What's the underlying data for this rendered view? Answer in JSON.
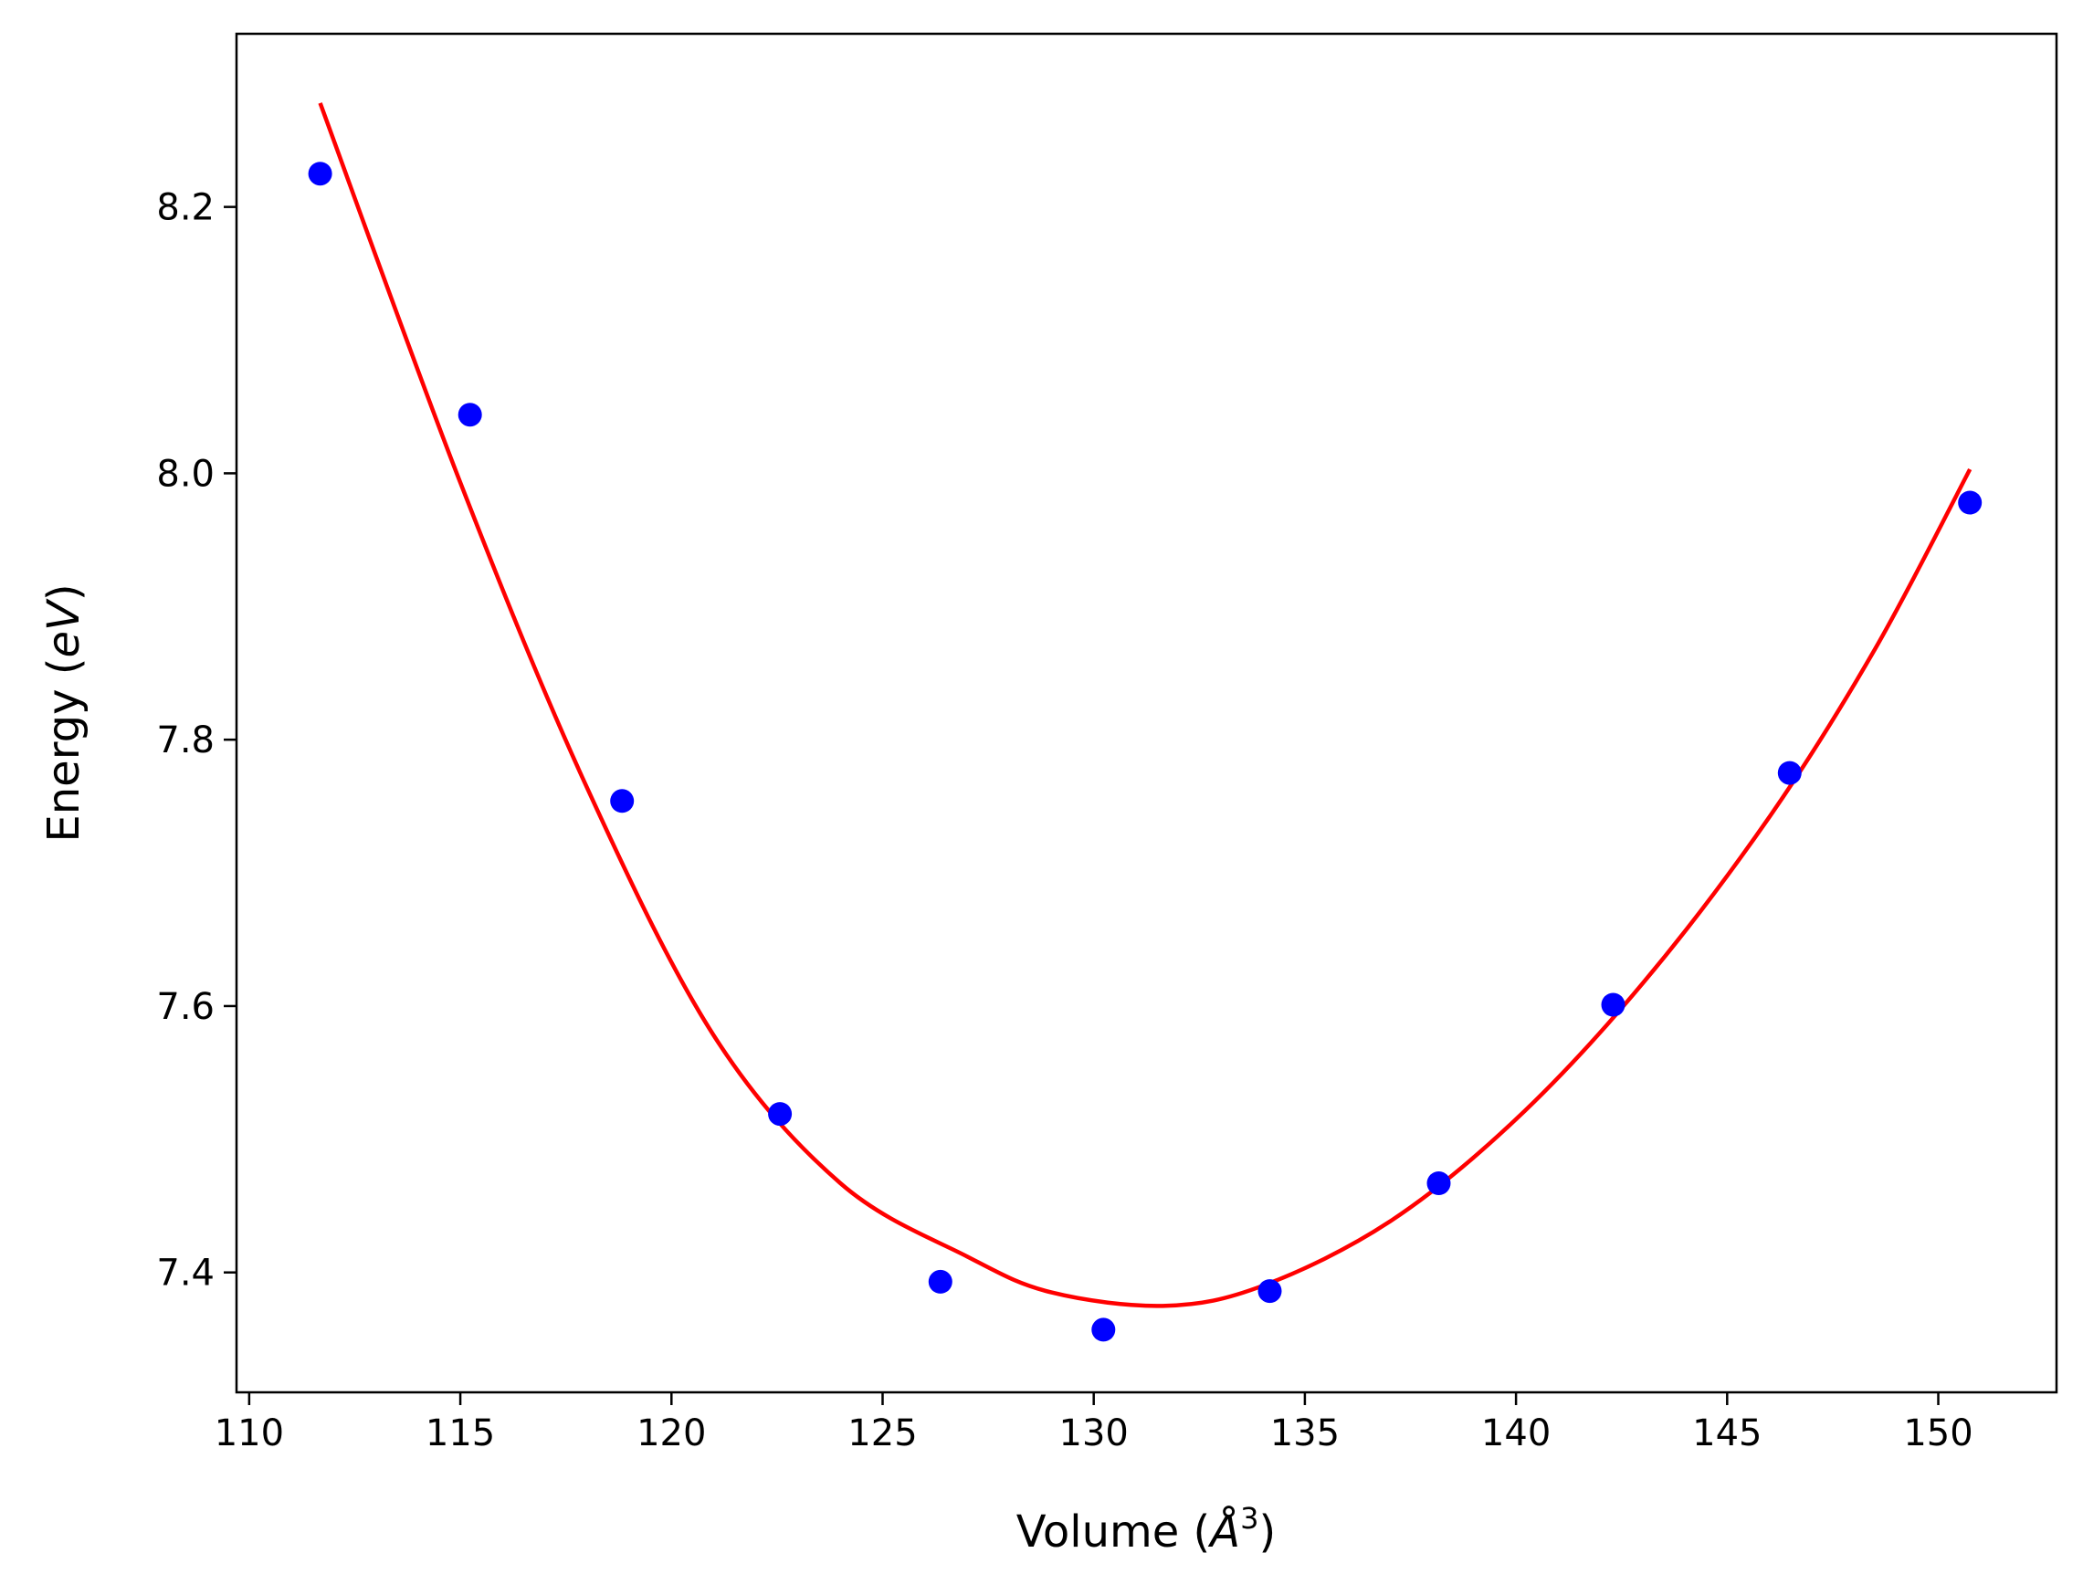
{
  "chart_data": {
    "type": "scatter",
    "title": "",
    "xlabel": "Volume (Å³)",
    "xlabel_parts": {
      "prefix": "Volume (",
      "math": "Å",
      "sup": "3",
      "suffix": ")"
    },
    "ylabel": "Energy (eV)",
    "ylabel_parts": {
      "prefix": "Energy (",
      "math": "eV",
      "suffix": ")"
    },
    "xlim": [
      109.7,
      152.8
    ],
    "ylim": [
      7.31,
      8.33
    ],
    "xticks": [
      110,
      115,
      120,
      125,
      130,
      135,
      140,
      145,
      150
    ],
    "xtick_labels": [
      "110",
      "115",
      "120",
      "125",
      "130",
      "135",
      "140",
      "145",
      "150"
    ],
    "yticks": [
      7.4,
      7.6,
      7.8,
      8.0,
      8.2
    ],
    "ytick_labels": [
      "7.4",
      "7.6",
      "7.8",
      "8.0",
      "8.2"
    ],
    "grid": false,
    "series": [
      {
        "kind": "scatter",
        "color": "#0000ff",
        "x": [
          111.68,
          115.23,
          118.83,
          122.57,
          126.37,
          130.23,
          134.17,
          138.17,
          142.3,
          146.48,
          150.75
        ],
        "y": [
          8.225,
          8.044,
          7.754,
          7.519,
          7.393,
          7.357,
          7.386,
          7.467,
          7.601,
          7.775,
          7.978
        ]
      },
      {
        "kind": "line",
        "color": "#ff0000",
        "x": [
          111.68,
          115.0,
          118.0,
          121.0,
          124.0,
          127.0,
          129.0,
          131.7,
          134.0,
          137.0,
          140.0,
          143.0,
          146.0,
          148.5,
          150.75
        ],
        "y": [
          8.278,
          7.993,
          7.764,
          7.578,
          7.467,
          7.412,
          7.385,
          7.375,
          7.39,
          7.438,
          7.515,
          7.617,
          7.742,
          7.868,
          8.003
        ]
      }
    ]
  }
}
